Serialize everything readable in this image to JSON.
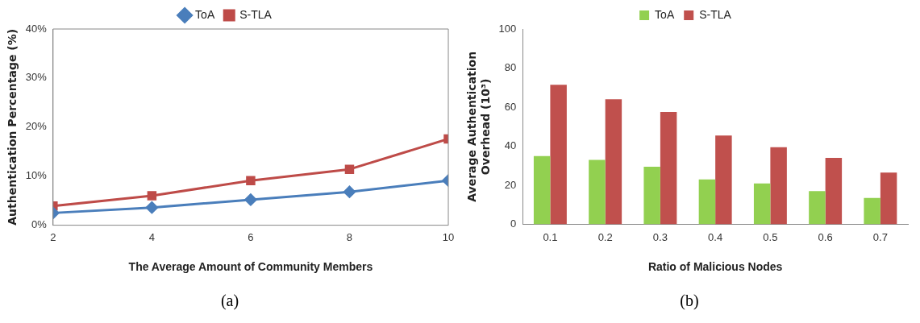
{
  "chart_data": [
    {
      "type": "line",
      "xlabel": "The Average Amount of Community Members",
      "ylabel": "Authentication Percentage (%)",
      "x": [
        2,
        4,
        6,
        8,
        10
      ],
      "xlim": [
        2,
        10
      ],
      "xticks": [
        2,
        4,
        6,
        8,
        10
      ],
      "ylim": [
        0,
        40
      ],
      "yticks": [
        {
          "value": 0,
          "label": "0%"
        },
        {
          "value": 10,
          "label": "10%"
        },
        {
          "value": 20,
          "label": "20%"
        },
        {
          "value": 30,
          "label": "30%"
        },
        {
          "value": 40,
          "label": "40%"
        }
      ],
      "series": [
        {
          "name": "ToA",
          "color": "#4a7ebb",
          "marker": "diamond",
          "values": [
            2.5,
            3.6,
            5.2,
            6.8,
            9.1
          ]
        },
        {
          "name": "S-TLA",
          "color": "#be4b48",
          "marker": "square",
          "values": [
            3.9,
            6.0,
            9.1,
            11.4,
            17.6
          ]
        }
      ],
      "legend": "top",
      "grid": false,
      "annotations": [
        "(a)"
      ]
    },
    {
      "type": "bar",
      "xlabel": "Ratio of Malicious Nodes",
      "ylabel": "Average Authentication\nOverhead (10³)",
      "categories": [
        "0.1",
        "0.2",
        "0.3",
        "0.4",
        "0.5",
        "0.6",
        "0.7"
      ],
      "ylim": [
        0,
        100
      ],
      "yticks": [
        0,
        20,
        40,
        60,
        80,
        100
      ],
      "series": [
        {
          "name": "ToA",
          "color": "#92d050",
          "values": [
            35,
            33,
            29.5,
            23,
            21,
            17,
            13.5
          ]
        },
        {
          "name": "S-TLA",
          "color": "#c0504d",
          "values": [
            71.5,
            64,
            57.5,
            45.5,
            39.5,
            34,
            26.5
          ]
        }
      ],
      "legend": "top",
      "grid": false,
      "annotations": [
        "(b)"
      ]
    }
  ]
}
